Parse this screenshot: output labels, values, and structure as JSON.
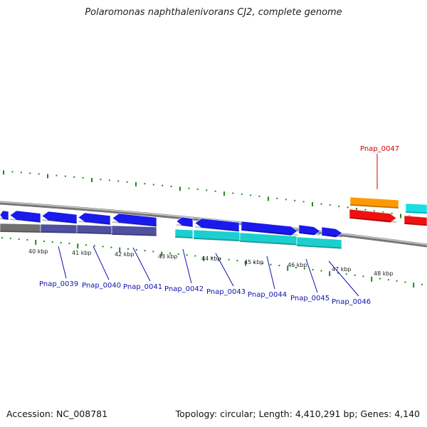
{
  "title": "Polaromonas naphthalenivorans CJ2, complete genome",
  "footer": {
    "accession": "Accession: NC_008781",
    "summary": "Topology: circular; Length: 4,410,291 bp; Genes: 4,140"
  },
  "colors": {
    "backbone": "#8c8c8c",
    "tick": "#1f8a1f",
    "forward_gene": "#1a1aee",
    "reverse_gene_shade": "#5050a0",
    "cyan_gene": "#1ccfcf",
    "orange_gene": "#ff9900",
    "red_gene": "#ee1111",
    "lower_label": "#1010b0",
    "upper_label": "#cc0000"
  },
  "scale_labels": [
    "40 kbp",
    "41 kbp",
    "42 kbp",
    "43 kbp",
    "44 kbp",
    "45 kbp",
    "46 kbp",
    "47 kbp",
    "48 kbp"
  ],
  "gene_labels_lower": [
    "Pnap_0039",
    "Pnap_0040",
    "Pnap_0041",
    "Pnap_0042",
    "Pnap_0043",
    "Pnap_0044",
    "Pnap_0045",
    "Pnap_0046"
  ],
  "gene_labels_upper": [
    "Pnap_0047"
  ]
}
